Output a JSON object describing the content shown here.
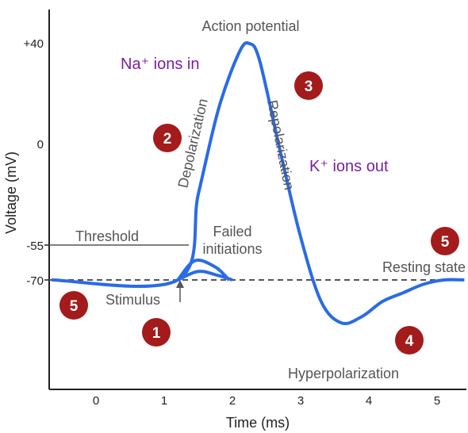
{
  "chart_data": {
    "type": "line",
    "title": "",
    "xlabel": "Time (ms)",
    "ylabel": "Voltage (mV)",
    "xlim": [
      -0.65,
      5.4
    ],
    "ylim": [
      -110,
      45
    ],
    "x_ticks": [
      "0",
      "1",
      "2",
      "3",
      "4",
      "5"
    ],
    "y_ticks": [
      "+40",
      "0",
      "-55",
      "-70"
    ],
    "series": [
      {
        "x": [
          -0.65,
          1.2,
          1.5,
          1.8,
          2.1,
          2.25,
          2.4,
          2.7,
          3.0,
          3.3,
          3.6,
          3.9,
          4.2,
          4.5,
          4.8,
          5.1,
          5.4
        ],
        "y": [
          -70,
          -70,
          -30,
          10,
          36,
          40,
          32,
          -10,
          -50,
          -80,
          -90,
          -87,
          -80,
          -76,
          -72,
          -70,
          -70
        ]
      }
    ],
    "failed_initiations": [
      {
        "x": [
          1.2,
          1.45,
          1.75,
          1.95
        ],
        "y": [
          -70,
          -61,
          -64,
          -70
        ]
      },
      {
        "x": [
          1.2,
          1.5,
          1.8,
          2.0
        ],
        "y": [
          -70,
          -66,
          -68,
          -70
        ]
      }
    ],
    "threshold": -55,
    "resting": -70,
    "annotations": {
      "action_potential": "Action potential",
      "depolarization": "Depolarization",
      "repolarization": "Repolarization",
      "na_ions_in": "Na⁺ ions in",
      "k_ions_out": "K⁺ ions out",
      "threshold": "Threshold",
      "failed_initiations_1": "Failed",
      "failed_initiations_2": "initiations",
      "resting_state": "Resting state",
      "stimulus": "Stimulus",
      "hyperpolarization": "Hyperpolarization"
    },
    "badges": [
      {
        "label": "1",
        "color": "#a31b1b"
      },
      {
        "label": "2",
        "color": "#a31b1b"
      },
      {
        "label": "3",
        "color": "#a31b1b"
      },
      {
        "label": "4",
        "color": "#a31b1b"
      },
      {
        "label": "5",
        "color": "#a31b1b"
      },
      {
        "label": "5",
        "color": "#a31b1b"
      }
    ],
    "colors": {
      "curve": "#2b6be5",
      "purple": "#7b1fa2",
      "gray": "#555555",
      "badge": "#a31b1b"
    }
  }
}
